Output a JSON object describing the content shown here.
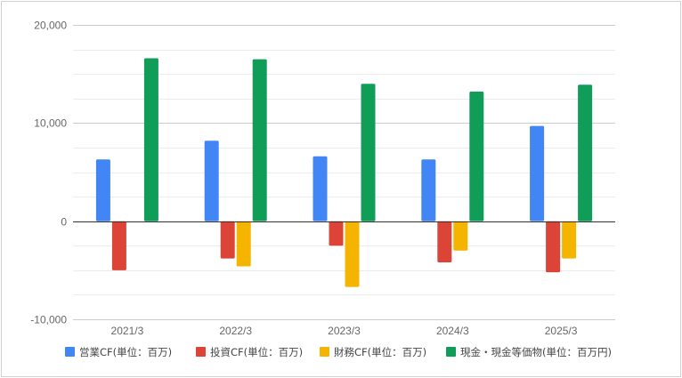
{
  "chart_data": {
    "type": "bar",
    "title": "",
    "xlabel": "",
    "ylabel": "",
    "categories": [
      "2021/3",
      "2022/3",
      "2023/3",
      "2024/3",
      "2025/3"
    ],
    "ylim": [
      -10000,
      20000
    ],
    "yticks": [
      -10000,
      0,
      10000,
      20000
    ],
    "ytick_labels": [
      "-10,000",
      "0",
      "10,000",
      "20,000"
    ],
    "grid": true,
    "legend_position": "bottom",
    "series": [
      {
        "name": "営業CF(単位：百万)",
        "color": "#4285f4",
        "values": [
          6300,
          8200,
          6600,
          6300,
          9700
        ]
      },
      {
        "name": "投資CF(単位：百万)",
        "color": "#db4437",
        "values": [
          -5000,
          -3800,
          -2500,
          -4200,
          -5200
        ]
      },
      {
        "name": "財務CF(単位：百万)",
        "color": "#f4b400",
        "values": [
          0,
          -4600,
          -6700,
          -3000,
          -3800
        ]
      },
      {
        "name": "現金・現金等価物(単位：百万円)",
        "color": "#0f9d58",
        "values": [
          16600,
          16500,
          14000,
          13200,
          13900
        ]
      }
    ]
  }
}
